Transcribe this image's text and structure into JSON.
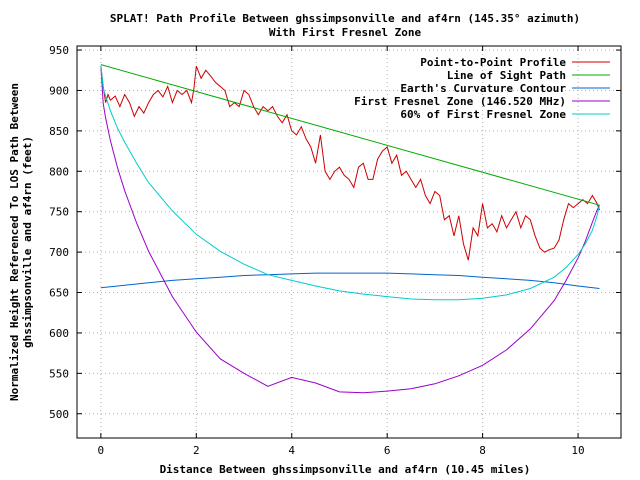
{
  "chart_data": {
    "type": "line",
    "title": "SPLAT! Path Profile Between ghssimpsonville and af4rn (145.35° azimuth)",
    "subtitle": "With First Fresnel Zone",
    "xlabel": "Distance Between ghssimpsonville and af4rn (10.45 miles)",
    "ylabel_lines": [
      "Normalized Height Referenced To LOS Path Between",
      "ghssimpsonville and af4rn (feet)"
    ],
    "xlim": [
      -0.5,
      10.9
    ],
    "ylim": [
      470,
      955
    ],
    "x_ticks": [
      "0",
      "2",
      "4",
      "6",
      "8",
      "10"
    ],
    "x_tick_values": [
      0,
      2,
      4,
      6,
      8,
      10
    ],
    "y_ticks": [
      "500",
      "550",
      "600",
      "650",
      "700",
      "750",
      "800",
      "850",
      "900",
      "950"
    ],
    "y_tick_values": [
      500,
      550,
      600,
      650,
      700,
      750,
      800,
      850,
      900,
      950
    ],
    "grid": true,
    "legend_position": "top-right",
    "series": [
      {
        "name": "Point-to-Point Profile",
        "color": "#cc0000",
        "x": [
          0,
          0.05,
          0.1,
          0.15,
          0.2,
          0.3,
          0.4,
          0.5,
          0.6,
          0.7,
          0.8,
          0.9,
          1.0,
          1.1,
          1.2,
          1.3,
          1.4,
          1.5,
          1.6,
          1.7,
          1.8,
          1.9,
          1.95,
          2.0,
          2.1,
          2.2,
          2.3,
          2.4,
          2.5,
          2.6,
          2.7,
          2.8,
          2.9,
          3.0,
          3.1,
          3.2,
          3.3,
          3.4,
          3.5,
          3.6,
          3.7,
          3.8,
          3.9,
          4.0,
          4.1,
          4.2,
          4.3,
          4.4,
          4.5,
          4.6,
          4.7,
          4.8,
          4.9,
          5.0,
          5.1,
          5.2,
          5.3,
          5.4,
          5.5,
          5.6,
          5.7,
          5.8,
          5.9,
          6.0,
          6.1,
          6.2,
          6.3,
          6.4,
          6.5,
          6.6,
          6.7,
          6.8,
          6.9,
          7.0,
          7.1,
          7.2,
          7.3,
          7.4,
          7.5,
          7.6,
          7.7,
          7.8,
          7.9,
          8.0,
          8.1,
          8.2,
          8.3,
          8.4,
          8.5,
          8.6,
          8.7,
          8.8,
          8.9,
          9.0,
          9.1,
          9.2,
          9.3,
          9.4,
          9.5,
          9.6,
          9.7,
          9.8,
          9.9,
          10.0,
          10.1,
          10.2,
          10.3,
          10.35,
          10.4,
          10.45
        ],
        "values": [
          930,
          905,
          885,
          895,
          888,
          893,
          880,
          895,
          885,
          868,
          880,
          872,
          885,
          895,
          900,
          892,
          905,
          885,
          900,
          895,
          900,
          885,
          902,
          930,
          915,
          925,
          918,
          910,
          905,
          900,
          880,
          885,
          880,
          900,
          895,
          880,
          870,
          880,
          875,
          880,
          868,
          860,
          870,
          850,
          845,
          855,
          840,
          830,
          810,
          845,
          800,
          790,
          800,
          805,
          795,
          790,
          780,
          805,
          810,
          790,
          790,
          815,
          825,
          830,
          810,
          820,
          795,
          800,
          790,
          780,
          790,
          770,
          760,
          775,
          770,
          740,
          745,
          720,
          745,
          710,
          690,
          730,
          720,
          760,
          730,
          735,
          725,
          745,
          730,
          740,
          750,
          730,
          745,
          740,
          720,
          705,
          700,
          703,
          705,
          715,
          740,
          760,
          755,
          760,
          765,
          760,
          770,
          765,
          760,
          752
        ]
      },
      {
        "name": "Line of Sight Path",
        "color": "#00aa00",
        "x": [
          0,
          10.45
        ],
        "values": [
          932,
          758
        ]
      },
      {
        "name": "Earth's Curvature Contour",
        "color": "#0066cc",
        "x": [
          0,
          0.5,
          1,
          1.5,
          2,
          2.5,
          3,
          3.5,
          4,
          4.5,
          5,
          5.5,
          6,
          6.5,
          7,
          7.5,
          8,
          8.5,
          9,
          9.5,
          10,
          10.45
        ],
        "values": [
          656,
          659,
          662,
          665,
          667,
          669,
          671,
          672,
          673,
          674,
          674,
          674,
          674,
          673,
          672,
          671,
          669,
          667,
          665,
          662,
          658,
          655
        ]
      },
      {
        "name": "First Fresnel Zone (146.520 MHz)",
        "color": "#9900cc",
        "x": [
          0,
          0.05,
          0.1,
          0.2,
          0.35,
          0.5,
          0.75,
          1,
          1.5,
          2,
          2.5,
          3,
          3.5,
          4,
          4.5,
          5,
          5.5,
          6,
          6.5,
          7,
          7.5,
          8,
          8.5,
          9,
          9.5,
          9.75,
          10,
          10.15,
          10.3,
          10.4,
          10.45
        ],
        "values": [
          930,
          884,
          866,
          838,
          804,
          776,
          736,
          701,
          645,
          601,
          568,
          550,
          534,
          545,
          538,
          527,
          526,
          528,
          531,
          537,
          547,
          560,
          579,
          605,
          640,
          665,
          693,
          713,
          737,
          752,
          758
        ]
      },
      {
        "name": "60% of First Fresnel Zone",
        "color": "#00cccc",
        "x": [
          0,
          0.05,
          0.1,
          0.2,
          0.35,
          0.5,
          0.75,
          1,
          1.5,
          2,
          2.5,
          3,
          3.5,
          4,
          4.5,
          5,
          5.5,
          6,
          6.5,
          7,
          7.5,
          8,
          8.5,
          9,
          9.5,
          9.75,
          10,
          10.15,
          10.3,
          10.4,
          10.45
        ],
        "values": [
          931,
          903,
          893,
          875,
          853,
          836,
          810,
          786,
          751,
          722,
          701,
          685,
          672,
          665,
          658,
          652,
          648,
          645,
          642,
          641,
          641,
          643,
          647,
          655,
          669,
          681,
          697,
          710,
          727,
          745,
          758
        ]
      }
    ]
  }
}
